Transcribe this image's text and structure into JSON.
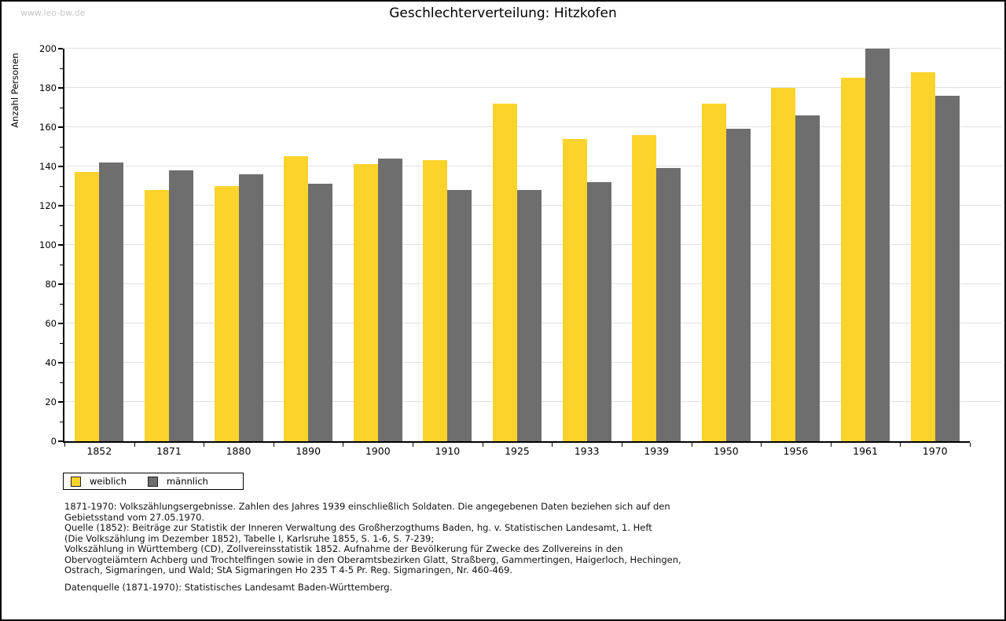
{
  "page": {
    "watermark": "www.leo-bw.de"
  },
  "chart_data": {
    "type": "bar",
    "title": "Geschlechterverteilung: Hitzkofen",
    "xlabel": "",
    "ylabel": "Anzahl Personen",
    "ylim": [
      0,
      200
    ],
    "ytick_step": 20,
    "yminor_step": 10,
    "grid": true,
    "legend_position": "bottom-left",
    "categories": [
      "1852",
      "1871",
      "1880",
      "1890",
      "1900",
      "1910",
      "1925",
      "1933",
      "1939",
      "1950",
      "1956",
      "1961",
      "1970"
    ],
    "series": [
      {
        "name": "weiblich",
        "color": "#FCD32B",
        "values": [
          137,
          128,
          130,
          145,
          141,
          143,
          172,
          154,
          156,
          172,
          180,
          185,
          188
        ]
      },
      {
        "name": "männlich",
        "color": "#6E6E6E",
        "values": [
          142,
          138,
          136,
          131,
          144,
          128,
          128,
          132,
          139,
          159,
          166,
          200,
          176
        ]
      }
    ]
  },
  "footnotes": {
    "lines": [
      "1871-1970: Volkszählungsergebnisse. Zahlen des Jahres 1939 einschließlich Soldaten. Die angegebenen Daten beziehen sich auf den",
      "Gebietsstand vom 27.05.1970.",
      "Quelle (1852): Beiträge zur Statistik der Inneren Verwaltung des Großherzogthums Baden, hg. v. Statistischen Landesamt, 1. Heft",
      "(Die Volkszählung im Dezember 1852), Tabelle I, Karlsruhe 1855, S. 1-6, S. 7-239;",
      "Volkszählung in Württemberg (CD), Zollvereinsstatistik 1852. Aufnahme der Bevölkerung für Zwecke des Zollvereins in den",
      "Obervogteiämtern Achberg und Trochtelfingen sowie in den Oberamtsbezirken Glatt, Straßberg, Gammertingen, Haigerloch, Hechingen,",
      "Ostrach, Sigmaringen, und Wald; StA Sigmaringen Ho 235 T 4-5 Pr. Reg. Sigmaringen, Nr. 460-469."
    ],
    "datasource": "Datenquelle (1871-1970): Statistisches Landesamt Baden-Württemberg."
  }
}
